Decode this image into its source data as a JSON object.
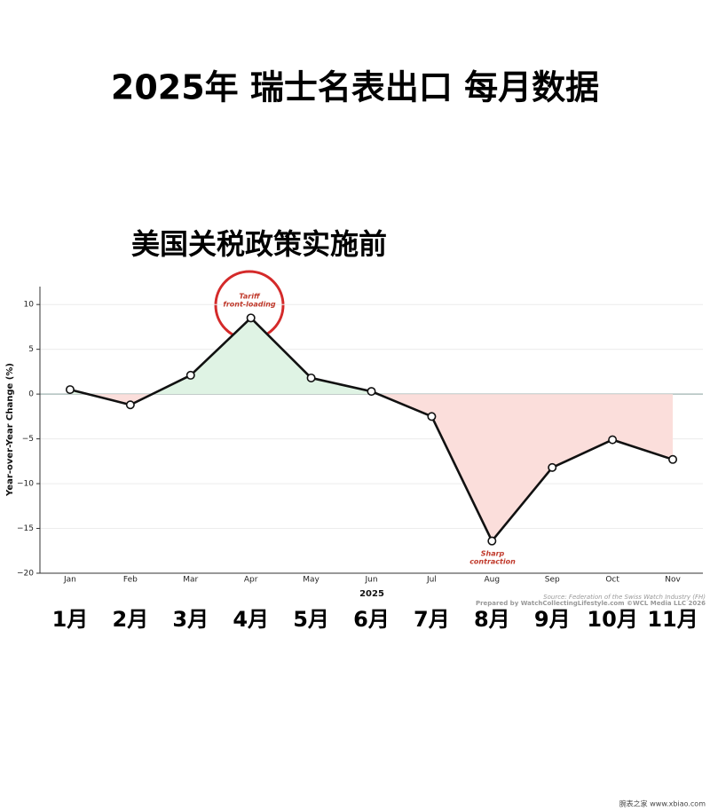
{
  "chart_data": {
    "type": "line",
    "title": "2025年 瑞士名表出口 每月数据",
    "subtitle": "美国关税政策实施前",
    "y_label": "Year-over-Year Change (%)",
    "x_label": "2025",
    "categories": [
      "Jan",
      "Feb",
      "Mar",
      "Apr",
      "May",
      "Jun",
      "Jul",
      "Aug",
      "Sep",
      "Oct",
      "Nov"
    ],
    "month_labels": [
      "1月",
      "2月",
      "3月",
      "4月",
      "5月",
      "6月",
      "7月",
      "8月",
      "9月",
      "10月",
      "11月"
    ],
    "values": [
      0.5,
      -1.2,
      2.1,
      8.5,
      1.8,
      0.3,
      -2.5,
      -16.4,
      -8.2,
      -5.1,
      -7.3
    ],
    "color": "#111111",
    "positive_fill": "#dff3e4",
    "negative_fill": "#fbdedb",
    "ylim": [
      -20,
      12
    ],
    "yticks": [
      {
        "value": -20,
        "label": "−20"
      },
      {
        "value": -15,
        "label": "−15"
      },
      {
        "value": -10,
        "label": "−10"
      },
      {
        "value": -5,
        "label": "−5"
      },
      0,
      5,
      10
    ],
    "grid": true,
    "annotations": [
      {
        "lines": [
          "Tariff",
          "front-loading"
        ]
      },
      {
        "lines": [
          "Sharp",
          "contraction"
        ]
      }
    ],
    "source": [
      "Source: Federation of the Swiss Watch Industry (FH)",
      "Prepared by WatchCollectingLifestyle.com ©WCL Media LLC 2026"
    ],
    "watermark": "腕表之家 www.xbiao.com"
  }
}
